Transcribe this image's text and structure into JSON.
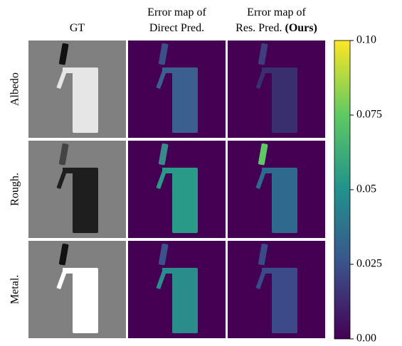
{
  "columns": [
    {
      "lines": [
        "GT"
      ]
    },
    {
      "lines": [
        "Error map of",
        "Direct Pred."
      ]
    },
    {
      "lines": [
        "Error map of",
        "Res. Pred."
      ],
      "bold": "(Ours)"
    }
  ],
  "rows": [
    "Albedo",
    "Rough.",
    "Metal."
  ],
  "colorbar": {
    "range": [
      0,
      0.1
    ],
    "ticks": [
      {
        "value": 0,
        "label": "0.00"
      },
      0.025,
      0.05,
      0.075,
      {
        "value": 0.1,
        "label": "0.10"
      }
    ],
    "colors": [
      "#440154",
      "#3b528b",
      "#21918c",
      "#5ec962",
      "#fde725"
    ]
  }
}
